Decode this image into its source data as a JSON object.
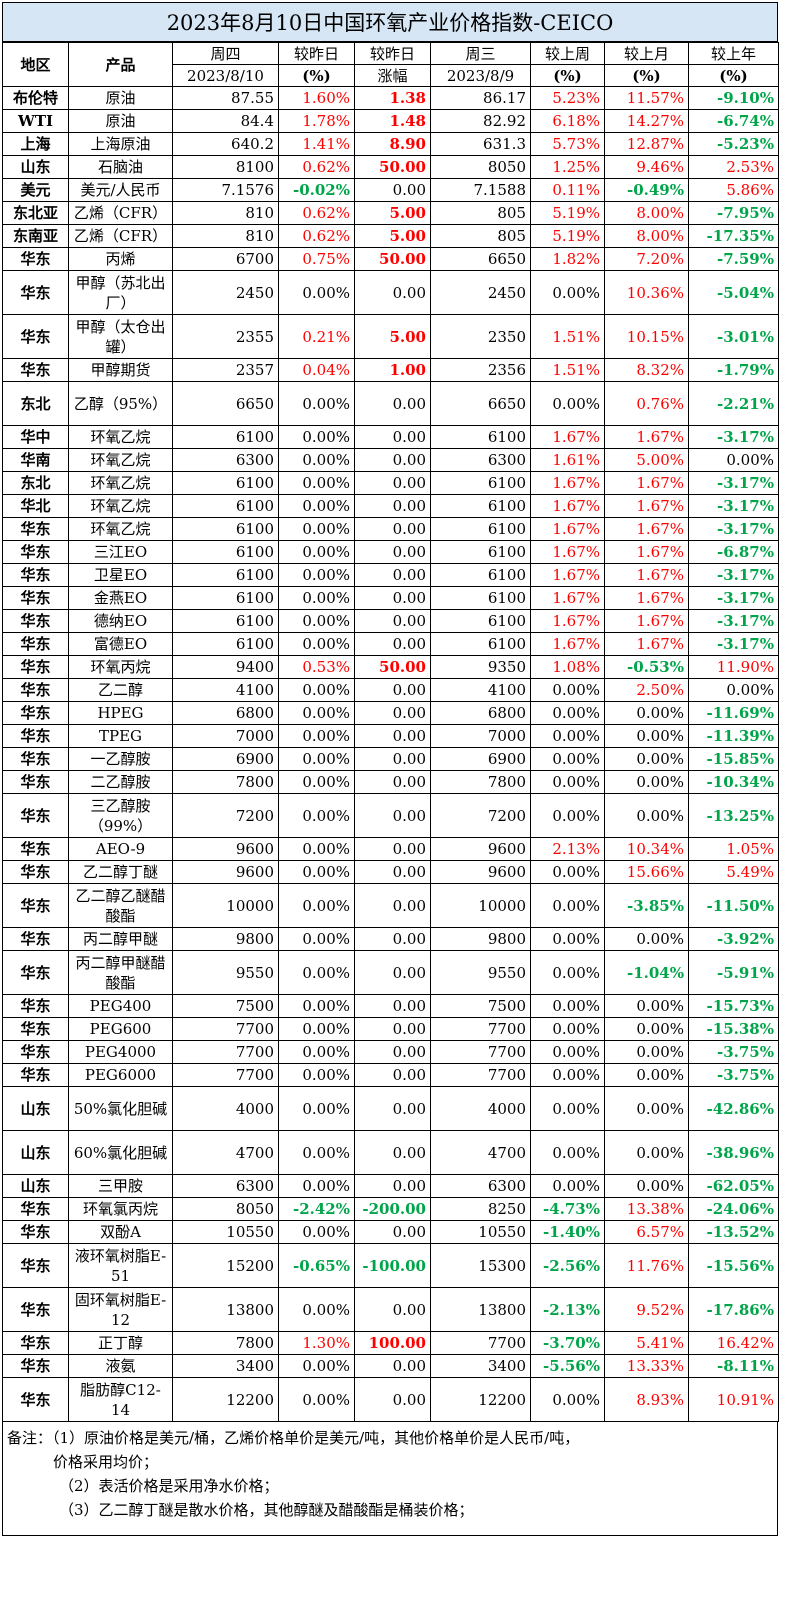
{
  "title": "2023年8月10日中国环氧产业价格指数-CEICO",
  "header": {
    "region": "地区",
    "product": "产品",
    "thu": "周四",
    "thu_date": "2023/8/10",
    "vs_yday": "较昨日",
    "vs_yday_unit": "(%)",
    "vs_yday2": "较昨日",
    "vs_yday2_unit": "涨幅",
    "wed": "周三",
    "wed_date": "2023/8/9",
    "vs_week": "较上周",
    "vs_week_unit": "(%)",
    "vs_month": "较上月",
    "vs_month_unit": "(%)",
    "vs_year": "较上年",
    "vs_year_unit": "(%)"
  },
  "rows": [
    {
      "region": "布伦特",
      "product": "原油",
      "thu": "87.55",
      "pct_d": "1.60%",
      "chg": "1.38",
      "wed": "86.17",
      "pct_w": "5.23%",
      "pct_m": "11.57%",
      "pct_y": "-9.10%"
    },
    {
      "region": "WTI",
      "product": "原油",
      "thu": "84.4",
      "pct_d": "1.78%",
      "chg": "1.48",
      "wed": "82.92",
      "pct_w": "6.18%",
      "pct_m": "14.27%",
      "pct_y": "-6.74%"
    },
    {
      "region": "上海",
      "product": "上海原油",
      "thu": "640.2",
      "pct_d": "1.41%",
      "chg": "8.90",
      "wed": "631.3",
      "pct_w": "5.73%",
      "pct_m": "12.87%",
      "pct_y": "-5.23%"
    },
    {
      "region": "山东",
      "product": "石脑油",
      "thu": "8100",
      "pct_d": "0.62%",
      "chg": "50.00",
      "wed": "8050",
      "pct_w": "1.25%",
      "pct_m": "9.46%",
      "pct_y": "2.53%"
    },
    {
      "region": "美元",
      "product": "美元/人民币",
      "thu": "7.1576",
      "pct_d": "-0.02%",
      "chg": "0.00",
      "wed": "7.1588",
      "pct_w": "0.11%",
      "pct_m": "-0.49%",
      "pct_y": "5.86%"
    },
    {
      "region": "东北亚",
      "product": "乙烯（CFR）",
      "thu": "810",
      "pct_d": "0.62%",
      "chg": "5.00",
      "wed": "805",
      "pct_w": "5.19%",
      "pct_m": "8.00%",
      "pct_y": "-7.95%"
    },
    {
      "region": "东南亚",
      "product": "乙烯（CFR）",
      "thu": "810",
      "pct_d": "0.62%",
      "chg": "5.00",
      "wed": "805",
      "pct_w": "5.19%",
      "pct_m": "8.00%",
      "pct_y": "-17.35%"
    },
    {
      "region": "华东",
      "product": "丙烯",
      "thu": "6700",
      "pct_d": "0.75%",
      "chg": "50.00",
      "wed": "6650",
      "pct_w": "1.82%",
      "pct_m": "7.20%",
      "pct_y": "-7.59%"
    },
    {
      "region": "华东",
      "product": "甲醇（苏北出厂）",
      "thu": "2450",
      "pct_d": "0.00%",
      "chg": "0.00",
      "wed": "2450",
      "pct_w": "0.00%",
      "pct_m": "10.36%",
      "pct_y": "-5.04%",
      "tall": true
    },
    {
      "region": "华东",
      "product": "甲醇（太仓出罐）",
      "thu": "2355",
      "pct_d": "0.21%",
      "chg": "5.00",
      "wed": "2350",
      "pct_w": "1.51%",
      "pct_m": "10.15%",
      "pct_y": "-3.01%",
      "tall": true
    },
    {
      "region": "华东",
      "product": "甲醇期货",
      "thu": "2357",
      "pct_d": "0.04%",
      "chg": "1.00",
      "wed": "2356",
      "pct_w": "1.51%",
      "pct_m": "8.32%",
      "pct_y": "-1.79%"
    },
    {
      "region": "东北",
      "product": "乙醇（95%）",
      "thu": "6650",
      "pct_d": "0.00%",
      "chg": "0.00",
      "wed": "6650",
      "pct_w": "0.00%",
      "pct_m": "0.76%",
      "pct_y": "-2.21%",
      "tall": true
    },
    {
      "region": "华中",
      "product": "环氧乙烷",
      "thu": "6100",
      "pct_d": "0.00%",
      "chg": "0.00",
      "wed": "6100",
      "pct_w": "1.67%",
      "pct_m": "1.67%",
      "pct_y": "-3.17%"
    },
    {
      "region": "华南",
      "product": "环氧乙烷",
      "thu": "6300",
      "pct_d": "0.00%",
      "chg": "0.00",
      "wed": "6300",
      "pct_w": "1.61%",
      "pct_m": "5.00%",
      "pct_y": "0.00%"
    },
    {
      "region": "东北",
      "product": "环氧乙烷",
      "thu": "6100",
      "pct_d": "0.00%",
      "chg": "0.00",
      "wed": "6100",
      "pct_w": "1.67%",
      "pct_m": "1.67%",
      "pct_y": "-3.17%"
    },
    {
      "region": "华北",
      "product": "环氧乙烷",
      "thu": "6100",
      "pct_d": "0.00%",
      "chg": "0.00",
      "wed": "6100",
      "pct_w": "1.67%",
      "pct_m": "1.67%",
      "pct_y": "-3.17%"
    },
    {
      "region": "华东",
      "product": "环氧乙烷",
      "thu": "6100",
      "pct_d": "0.00%",
      "chg": "0.00",
      "wed": "6100",
      "pct_w": "1.67%",
      "pct_m": "1.67%",
      "pct_y": "-3.17%"
    },
    {
      "region": "华东",
      "product": "三江EO",
      "thu": "6100",
      "pct_d": "0.00%",
      "chg": "0.00",
      "wed": "6100",
      "pct_w": "1.67%",
      "pct_m": "1.67%",
      "pct_y": "-6.87%"
    },
    {
      "region": "华东",
      "product": "卫星EO",
      "thu": "6100",
      "pct_d": "0.00%",
      "chg": "0.00",
      "wed": "6100",
      "pct_w": "1.67%",
      "pct_m": "1.67%",
      "pct_y": "-3.17%"
    },
    {
      "region": "华东",
      "product": "金燕EO",
      "thu": "6100",
      "pct_d": "0.00%",
      "chg": "0.00",
      "wed": "6100",
      "pct_w": "1.67%",
      "pct_m": "1.67%",
      "pct_y": "-3.17%"
    },
    {
      "region": "华东",
      "product": "德纳EO",
      "thu": "6100",
      "pct_d": "0.00%",
      "chg": "0.00",
      "wed": "6100",
      "pct_w": "1.67%",
      "pct_m": "1.67%",
      "pct_y": "-3.17%"
    },
    {
      "region": "华东",
      "product": "富德EO",
      "thu": "6100",
      "pct_d": "0.00%",
      "chg": "0.00",
      "wed": "6100",
      "pct_w": "1.67%",
      "pct_m": "1.67%",
      "pct_y": "-3.17%"
    },
    {
      "region": "华东",
      "product": "环氧丙烷",
      "thu": "9400",
      "pct_d": "0.53%",
      "chg": "50.00",
      "wed": "9350",
      "pct_w": "1.08%",
      "pct_m": "-0.53%",
      "pct_y": "11.90%"
    },
    {
      "region": "华东",
      "product": "乙二醇",
      "thu": "4100",
      "pct_d": "0.00%",
      "chg": "0.00",
      "wed": "4100",
      "pct_w": "0.00%",
      "pct_m": "2.50%",
      "pct_y": "0.00%"
    },
    {
      "region": "华东",
      "product": "HPEG",
      "thu": "6800",
      "pct_d": "0.00%",
      "chg": "0.00",
      "wed": "6800",
      "pct_w": "0.00%",
      "pct_m": "0.00%",
      "pct_y": "-11.69%"
    },
    {
      "region": "华东",
      "product": "TPEG",
      "thu": "7000",
      "pct_d": "0.00%",
      "chg": "0.00",
      "wed": "7000",
      "pct_w": "0.00%",
      "pct_m": "0.00%",
      "pct_y": "-11.39%"
    },
    {
      "region": "华东",
      "product": "一乙醇胺",
      "thu": "6900",
      "pct_d": "0.00%",
      "chg": "0.00",
      "wed": "6900",
      "pct_w": "0.00%",
      "pct_m": "0.00%",
      "pct_y": "-15.85%"
    },
    {
      "region": "华东",
      "product": "二乙醇胺",
      "thu": "7800",
      "pct_d": "0.00%",
      "chg": "0.00",
      "wed": "7800",
      "pct_w": "0.00%",
      "pct_m": "0.00%",
      "pct_y": "-10.34%"
    },
    {
      "region": "华东",
      "product": "三乙醇胺（99%）",
      "thu": "7200",
      "pct_d": "0.00%",
      "chg": "0.00",
      "wed": "7200",
      "pct_w": "0.00%",
      "pct_m": "0.00%",
      "pct_y": "-13.25%",
      "tall": true
    },
    {
      "region": "华东",
      "product": "AEO-9",
      "thu": "9600",
      "pct_d": "0.00%",
      "chg": "0.00",
      "wed": "9600",
      "pct_w": "2.13%",
      "pct_m": "10.34%",
      "pct_y": "1.05%"
    },
    {
      "region": "华东",
      "product": "乙二醇丁醚",
      "thu": "9600",
      "pct_d": "0.00%",
      "chg": "0.00",
      "wed": "9600",
      "pct_w": "0.00%",
      "pct_m": "15.66%",
      "pct_y": "5.49%"
    },
    {
      "region": "华东",
      "product": "乙二醇乙醚醋酸酯",
      "thu": "10000",
      "pct_d": "0.00%",
      "chg": "0.00",
      "wed": "10000",
      "pct_w": "0.00%",
      "pct_m": "-3.85%",
      "pct_y": "-11.50%",
      "tall": true
    },
    {
      "region": "华东",
      "product": "丙二醇甲醚",
      "thu": "9800",
      "pct_d": "0.00%",
      "chg": "0.00",
      "wed": "9800",
      "pct_w": "0.00%",
      "pct_m": "0.00%",
      "pct_y": "-3.92%"
    },
    {
      "region": "华东",
      "product": "丙二醇甲醚醋酸酯",
      "thu": "9550",
      "pct_d": "0.00%",
      "chg": "0.00",
      "wed": "9550",
      "pct_w": "0.00%",
      "pct_m": "-1.04%",
      "pct_y": "-5.91%",
      "tall": true
    },
    {
      "region": "华东",
      "product": "PEG400",
      "thu": "7500",
      "pct_d": "0.00%",
      "chg": "0.00",
      "wed": "7500",
      "pct_w": "0.00%",
      "pct_m": "0.00%",
      "pct_y": "-15.73%"
    },
    {
      "region": "华东",
      "product": "PEG600",
      "thu": "7700",
      "pct_d": "0.00%",
      "chg": "0.00",
      "wed": "7700",
      "pct_w": "0.00%",
      "pct_m": "0.00%",
      "pct_y": "-15.38%"
    },
    {
      "region": "华东",
      "product": "PEG4000",
      "thu": "7700",
      "pct_d": "0.00%",
      "chg": "0.00",
      "wed": "7700",
      "pct_w": "0.00%",
      "pct_m": "0.00%",
      "pct_y": "-3.75%"
    },
    {
      "region": "华东",
      "product": "PEG6000",
      "thu": "7700",
      "pct_d": "0.00%",
      "chg": "0.00",
      "wed": "7700",
      "pct_w": "0.00%",
      "pct_m": "0.00%",
      "pct_y": "-3.75%"
    },
    {
      "region": "山东",
      "product": "50%氯化胆碱",
      "thu": "4000",
      "pct_d": "0.00%",
      "chg": "0.00",
      "wed": "4000",
      "pct_w": "0.00%",
      "pct_m": "0.00%",
      "pct_y": "-42.86%",
      "tall": true
    },
    {
      "region": "山东",
      "product": "60%氯化胆碱",
      "thu": "4700",
      "pct_d": "0.00%",
      "chg": "0.00",
      "wed": "4700",
      "pct_w": "0.00%",
      "pct_m": "0.00%",
      "pct_y": "-38.96%",
      "tall": true
    },
    {
      "region": "山东",
      "product": "三甲胺",
      "thu": "6300",
      "pct_d": "0.00%",
      "chg": "0.00",
      "wed": "6300",
      "pct_w": "0.00%",
      "pct_m": "0.00%",
      "pct_y": "-62.05%"
    },
    {
      "region": "华东",
      "product": "环氧氯丙烷",
      "thu": "8050",
      "pct_d": "-2.42%",
      "chg": "-200.00",
      "wed": "8250",
      "pct_w": "-4.73%",
      "pct_m": "13.38%",
      "pct_y": "-24.06%"
    },
    {
      "region": "华东",
      "product": "双酚A",
      "thu": "10550",
      "pct_d": "0.00%",
      "chg": "0.00",
      "wed": "10550",
      "pct_w": "-1.40%",
      "pct_m": "6.57%",
      "pct_y": "-13.52%"
    },
    {
      "region": "华东",
      "product": "液环氧树脂E-51",
      "thu": "15200",
      "pct_d": "-0.65%",
      "chg": "-100.00",
      "wed": "15300",
      "pct_w": "-2.56%",
      "pct_m": "11.76%",
      "pct_y": "-15.56%",
      "tall": true
    },
    {
      "region": "华东",
      "product": "固环氧树脂E-12",
      "thu": "13800",
      "pct_d": "0.00%",
      "chg": "0.00",
      "wed": "13800",
      "pct_w": "-2.13%",
      "pct_m": "9.52%",
      "pct_y": "-17.86%",
      "tall": true
    },
    {
      "region": "华东",
      "product": "正丁醇",
      "thu": "7800",
      "pct_d": "1.30%",
      "chg": "100.00",
      "wed": "7700",
      "pct_w": "-3.70%",
      "pct_m": "5.41%",
      "pct_y": "16.42%"
    },
    {
      "region": "华东",
      "product": "液氨",
      "thu": "3400",
      "pct_d": "0.00%",
      "chg": "0.00",
      "wed": "3400",
      "pct_w": "-5.56%",
      "pct_m": "13.33%",
      "pct_y": "-8.11%"
    },
    {
      "region": "华东",
      "product": "脂肪醇C12-14",
      "thu": "12200",
      "pct_d": "0.00%",
      "chg": "0.00",
      "wed": "12200",
      "pct_w": "0.00%",
      "pct_m": "8.93%",
      "pct_y": "10.91%",
      "tall": true
    }
  ],
  "notes": {
    "line1": "备注：（1）原油价格是美元/桶，乙烯价格单价是美元/吨，其他价格单价是人民币/吨，",
    "line2": "价格采用均价；",
    "line3": "（2）表活价格是采用净水价格；",
    "line4": "（3）乙二醇丁醚是散水价格，其他醇醚及醋酸酯是桶装价格；"
  },
  "colors": {
    "positive": "#ff0000",
    "negative": "#00a54a",
    "title_bg": "#d6e6f5"
  }
}
